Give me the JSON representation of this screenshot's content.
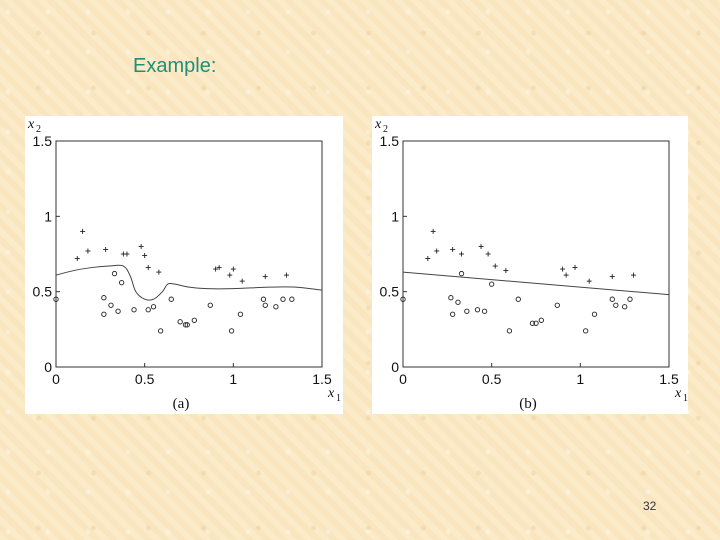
{
  "slide": {
    "title": "Example:",
    "page_number": "32"
  },
  "chart_data": [
    {
      "type": "scatter",
      "caption": "(a)",
      "xlabel": "x",
      "xlabel_sub": "1",
      "ylabel": "x",
      "ylabel_sub": "2",
      "xlim": [
        0,
        1.5
      ],
      "ylim": [
        0,
        1.5
      ],
      "xticks": [
        "0",
        "0.5",
        "1",
        "1.5"
      ],
      "yticks": [
        "0",
        "0.5",
        "1",
        "1.5"
      ],
      "grid": false,
      "series": [
        {
          "marker": "+",
          "points": [
            [
              0.12,
              0.72
            ],
            [
              0.15,
              0.9
            ],
            [
              0.18,
              0.77
            ],
            [
              0.28,
              0.78
            ],
            [
              0.38,
              0.75
            ],
            [
              0.4,
              0.75
            ],
            [
              0.48,
              0.8
            ],
            [
              0.5,
              0.74
            ],
            [
              0.52,
              0.66
            ],
            [
              0.58,
              0.63
            ],
            [
              0.9,
              0.65
            ],
            [
              0.92,
              0.66
            ],
            [
              0.98,
              0.61
            ],
            [
              1.0,
              0.65
            ],
            [
              1.05,
              0.57
            ],
            [
              1.18,
              0.6
            ],
            [
              1.3,
              0.61
            ]
          ]
        },
        {
          "marker": "o",
          "points": [
            [
              0.0,
              0.45
            ],
            [
              0.27,
              0.46
            ],
            [
              0.27,
              0.35
            ],
            [
              0.31,
              0.41
            ],
            [
              0.33,
              0.62
            ],
            [
              0.35,
              0.37
            ],
            [
              0.37,
              0.56
            ],
            [
              0.44,
              0.38
            ],
            [
              0.52,
              0.38
            ],
            [
              0.55,
              0.4
            ],
            [
              0.59,
              0.24
            ],
            [
              0.65,
              0.45
            ],
            [
              0.7,
              0.3
            ],
            [
              0.73,
              0.28
            ],
            [
              0.74,
              0.28
            ],
            [
              0.78,
              0.31
            ],
            [
              0.87,
              0.41
            ],
            [
              0.99,
              0.24
            ],
            [
              1.04,
              0.35
            ],
            [
              1.17,
              0.45
            ],
            [
              1.18,
              0.41
            ],
            [
              1.24,
              0.4
            ],
            [
              1.28,
              0.45
            ],
            [
              1.33,
              0.45
            ]
          ]
        }
      ],
      "boundary": [
        [
          0,
          0.61
        ],
        [
          0.1,
          0.64
        ],
        [
          0.2,
          0.66
        ],
        [
          0.3,
          0.67
        ],
        [
          0.38,
          0.67
        ],
        [
          0.42,
          0.6
        ],
        [
          0.45,
          0.5
        ],
        [
          0.5,
          0.45
        ],
        [
          0.55,
          0.45
        ],
        [
          0.6,
          0.5
        ],
        [
          0.63,
          0.55
        ],
        [
          0.67,
          0.55
        ],
        [
          0.75,
          0.53
        ],
        [
          0.85,
          0.52
        ],
        [
          1.0,
          0.52
        ],
        [
          1.2,
          0.53
        ],
        [
          1.35,
          0.53
        ],
        [
          1.5,
          0.51
        ]
      ]
    },
    {
      "type": "scatter",
      "caption": "(b)",
      "xlabel": "x",
      "xlabel_sub": "1",
      "ylabel": "x",
      "ylabel_sub": "2",
      "xlim": [
        0,
        1.5
      ],
      "ylim": [
        0,
        1.5
      ],
      "xticks": [
        "0",
        "0.5",
        "1",
        "1.5"
      ],
      "yticks": [
        "0",
        "0.5",
        "1",
        "1.5"
      ],
      "grid": false,
      "series": [
        {
          "marker": "+",
          "points": [
            [
              0.14,
              0.72
            ],
            [
              0.17,
              0.9
            ],
            [
              0.19,
              0.77
            ],
            [
              0.28,
              0.78
            ],
            [
              0.33,
              0.75
            ],
            [
              0.44,
              0.8
            ],
            [
              0.48,
              0.75
            ],
            [
              0.52,
              0.67
            ],
            [
              0.58,
              0.64
            ],
            [
              0.9,
              0.65
            ],
            [
              0.92,
              0.61
            ],
            [
              0.97,
              0.66
            ],
            [
              1.05,
              0.57
            ],
            [
              1.18,
              0.6
            ],
            [
              1.3,
              0.61
            ]
          ]
        },
        {
          "marker": "o",
          "points": [
            [
              0.0,
              0.45
            ],
            [
              0.27,
              0.46
            ],
            [
              0.28,
              0.35
            ],
            [
              0.31,
              0.43
            ],
            [
              0.33,
              0.62
            ],
            [
              0.36,
              0.37
            ],
            [
              0.42,
              0.38
            ],
            [
              0.46,
              0.37
            ],
            [
              0.5,
              0.55
            ],
            [
              0.6,
              0.24
            ],
            [
              0.65,
              0.45
            ],
            [
              0.73,
              0.29
            ],
            [
              0.75,
              0.29
            ],
            [
              0.78,
              0.31
            ],
            [
              0.87,
              0.41
            ],
            [
              1.03,
              0.24
            ],
            [
              1.08,
              0.35
            ],
            [
              1.18,
              0.45
            ],
            [
              1.2,
              0.41
            ],
            [
              1.25,
              0.4
            ],
            [
              1.28,
              0.45
            ]
          ]
        }
      ],
      "boundary": [
        [
          0,
          0.63
        ],
        [
          1.5,
          0.48
        ]
      ]
    }
  ]
}
